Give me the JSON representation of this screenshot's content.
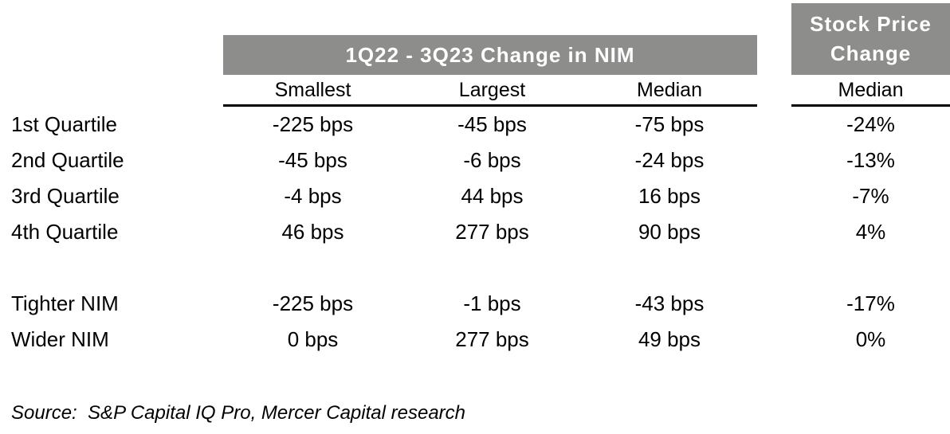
{
  "colors": {
    "header_bg": "#8d8d8b",
    "header_text": "#ffffff",
    "body_text": "#000000",
    "rule": "#000000"
  },
  "chart_data": {
    "type": "table",
    "title": "1Q22 - 3Q23 Change in NIM",
    "column_groups": [
      {
        "label": "1Q22 - 3Q23 Change in NIM",
        "columns": [
          "Smallest",
          "Largest",
          "Median"
        ]
      },
      {
        "label": "Stock Price Change",
        "columns": [
          "Median"
        ]
      }
    ],
    "columns": [
      "",
      "Smallest",
      "Largest",
      "Median",
      "Median"
    ],
    "rows": [
      [
        "1st Quartile",
        "-225 bps",
        "-45 bps",
        "-75 bps",
        "-24%"
      ],
      [
        "2nd Quartile",
        "-45 bps",
        "-6 bps",
        "-24 bps",
        "-13%"
      ],
      [
        "3rd Quartile",
        "-4 bps",
        "44 bps",
        "16 bps",
        "-7%"
      ],
      [
        "4th Quartile",
        "46 bps",
        "277 bps",
        "90 bps",
        "4%"
      ],
      [
        "Tighter NIM",
        "-225 bps",
        "-1 bps",
        "-43 bps",
        "-17%"
      ],
      [
        "Wider NIM",
        "0 bps",
        "277 bps",
        "49 bps",
        "0%"
      ]
    ],
    "source": "Source:  S&P Capital IQ Pro, Mercer Capital research"
  },
  "table": {
    "group_header": "1Q22 - 3Q23 Change in NIM",
    "stock_header": {
      "line1": "Stock Price",
      "line2": "Change"
    },
    "col_headers": {
      "smallest": "Smallest",
      "largest": "Largest",
      "median": "Median",
      "stock_median": "Median"
    },
    "rows": [
      {
        "label": "1st Quartile",
        "smallest": "-225 bps",
        "largest": "-45 bps",
        "median": "-75 bps",
        "stock": "-24%"
      },
      {
        "label": "2nd Quartile",
        "smallest": "-45 bps",
        "largest": "-6 bps",
        "median": "-24 bps",
        "stock": "-13%"
      },
      {
        "label": "3rd Quartile",
        "smallest": "-4 bps",
        "largest": "44 bps",
        "median": "16 bps",
        "stock": "-7%"
      },
      {
        "label": "4th Quartile",
        "smallest": "46 bps",
        "largest": "277 bps",
        "median": "90 bps",
        "stock": "4%"
      }
    ],
    "summary_rows": [
      {
        "label": "Tighter NIM",
        "smallest": "-225 bps",
        "largest": "-1 bps",
        "median": "-43 bps",
        "stock": "-17%"
      },
      {
        "label": "Wider NIM",
        "smallest": "0 bps",
        "largest": "277 bps",
        "median": "49 bps",
        "stock": "0%"
      }
    ],
    "source_note": "Source:  S&P Capital IQ Pro, Mercer Capital research"
  }
}
